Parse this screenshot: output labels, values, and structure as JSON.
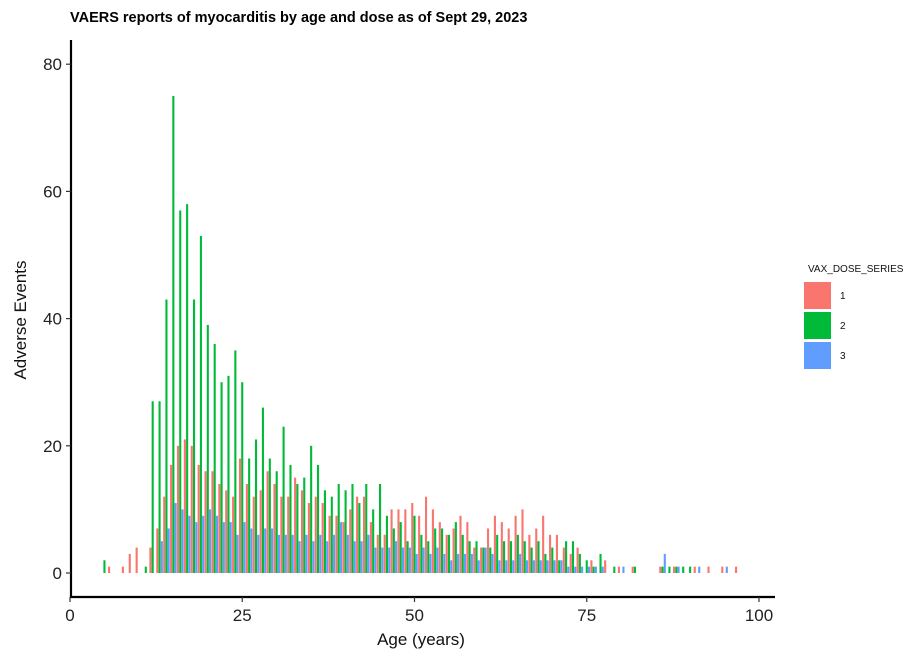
{
  "chart_data": {
    "type": "bar",
    "title": "VAERS reports of myocarditis by age and dose as of Sept 29, 2023",
    "xlabel": "Age (years)",
    "ylabel": "Adverse Events",
    "xlim": [
      0,
      100
    ],
    "ylim": [
      0,
      85
    ],
    "xticks": [
      0,
      25,
      50,
      75,
      100
    ],
    "yticks": [
      0,
      20,
      40,
      60,
      80
    ],
    "grid": false,
    "legend": {
      "title": "VAX_DOSE_SERIES",
      "placement": "right",
      "entries": [
        {
          "label": "1",
          "color": "#F8766D"
        },
        {
          "label": "2",
          "color": "#00BA38"
        },
        {
          "label": "3",
          "color": "#619CFF"
        }
      ]
    },
    "series": [
      {
        "name": "1",
        "color": "#F8766D",
        "x": [
          6,
          8,
          9,
          10,
          12,
          13,
          14,
          15,
          16,
          17,
          18,
          19,
          20,
          21,
          22,
          23,
          24,
          25,
          26,
          27,
          28,
          29,
          30,
          31,
          32,
          33,
          34,
          35,
          36,
          37,
          38,
          39,
          40,
          41,
          42,
          43,
          44,
          45,
          46,
          47,
          48,
          49,
          50,
          51,
          52,
          53,
          54,
          55,
          56,
          57,
          58,
          59,
          60,
          61,
          62,
          63,
          64,
          65,
          66,
          67,
          68,
          69,
          70,
          71,
          72,
          73,
          74,
          76,
          78,
          80,
          82,
          86,
          88,
          91,
          93,
          95,
          97
        ],
        "values": [
          1,
          1,
          3,
          4,
          4,
          7,
          12,
          17,
          20,
          21,
          20,
          17,
          16,
          16,
          14,
          13,
          12,
          18,
          14,
          12,
          13,
          16,
          14,
          12,
          12,
          15,
          13,
          11,
          12,
          11,
          9,
          9,
          8,
          10,
          12,
          12,
          8,
          6,
          6,
          10,
          10,
          10,
          11,
          9,
          12,
          10,
          8,
          6,
          7,
          9,
          8,
          4,
          4,
          7,
          9,
          8,
          7,
          9,
          10,
          6,
          7,
          9,
          6,
          6,
          4,
          3,
          4,
          2,
          2,
          1,
          1,
          1,
          1,
          1,
          1,
          1,
          1
        ]
      },
      {
        "name": "2",
        "color": "#00BA38",
        "x": [
          5,
          11,
          12,
          13,
          14,
          15,
          16,
          17,
          18,
          19,
          20,
          21,
          22,
          23,
          24,
          25,
          26,
          27,
          28,
          29,
          30,
          31,
          32,
          33,
          34,
          35,
          36,
          37,
          38,
          39,
          40,
          41,
          42,
          43,
          44,
          45,
          46,
          47,
          48,
          49,
          50,
          51,
          52,
          53,
          54,
          55,
          56,
          57,
          58,
          59,
          60,
          61,
          62,
          63,
          64,
          65,
          66,
          67,
          68,
          69,
          70,
          71,
          72,
          73,
          74,
          75,
          76,
          77,
          79,
          82,
          86,
          87,
          88,
          89,
          90
        ],
        "values": [
          2,
          1,
          27,
          27,
          43,
          75,
          57,
          58,
          43,
          53,
          39,
          36,
          30,
          31,
          35,
          30,
          18,
          21,
          26,
          18,
          16,
          23,
          17,
          14,
          15,
          20,
          17,
          13,
          12,
          14,
          13,
          14,
          11,
          14,
          10,
          14,
          9,
          7,
          8,
          5,
          9,
          6,
          5,
          7,
          7,
          6,
          8,
          6,
          5,
          5,
          4,
          4,
          6,
          5,
          5,
          6,
          5,
          4,
          5,
          3,
          4,
          2,
          5,
          5,
          3,
          2,
          1,
          3,
          1,
          1,
          1,
          1,
          1,
          1,
          1
        ]
      },
      {
        "name": "3",
        "color": "#619CFF",
        "x": [
          13,
          14,
          15,
          16,
          17,
          18,
          19,
          20,
          21,
          22,
          23,
          24,
          25,
          26,
          27,
          28,
          29,
          30,
          31,
          32,
          33,
          34,
          35,
          36,
          37,
          38,
          39,
          40,
          41,
          42,
          43,
          44,
          45,
          46,
          47,
          48,
          49,
          50,
          51,
          52,
          53,
          54,
          55,
          56,
          57,
          58,
          59,
          60,
          61,
          62,
          63,
          64,
          65,
          66,
          67,
          68,
          69,
          70,
          71,
          72,
          73,
          74,
          75,
          76,
          77,
          80,
          86,
          88,
          91,
          95
        ],
        "values": [
          5,
          7,
          11,
          10,
          9,
          8,
          9,
          10,
          9,
          8,
          8,
          6,
          8,
          7,
          6,
          7,
          7,
          6,
          6,
          6,
          5,
          6,
          5,
          6,
          5,
          6,
          8,
          6,
          5,
          5,
          6,
          4,
          4,
          4,
          5,
          4,
          4,
          3,
          4,
          3,
          4,
          3,
          2,
          3,
          3,
          3,
          2,
          4,
          3,
          2,
          2,
          2,
          3,
          2,
          2,
          2,
          2,
          2,
          2,
          1,
          1,
          1,
          1,
          1,
          1,
          1,
          3,
          1,
          1,
          1
        ]
      }
    ]
  }
}
